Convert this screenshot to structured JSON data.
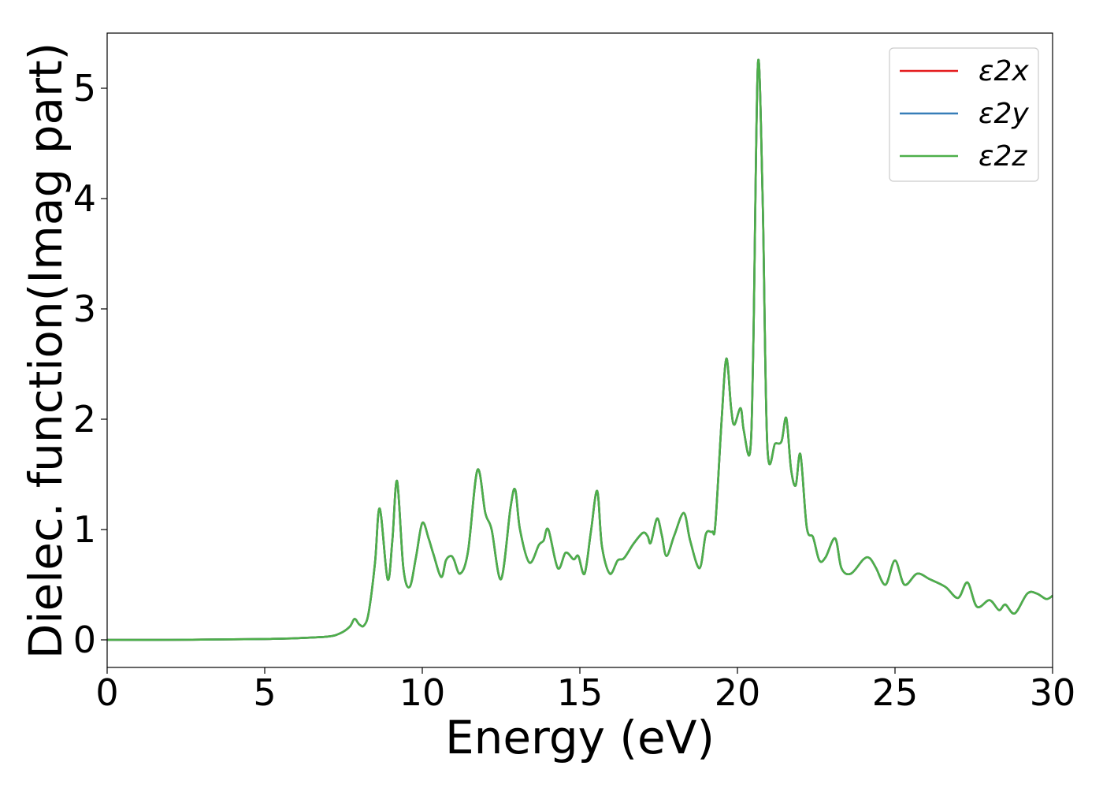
{
  "chart_data": {
    "type": "line",
    "title": "",
    "xlabel": "Energy (eV)",
    "ylabel": "Dielec. function(Imag part)",
    "xlim": [
      0,
      30
    ],
    "ylim": [
      -0.25,
      5.5
    ],
    "xticks": [
      0,
      5,
      10,
      15,
      20,
      25,
      30
    ],
    "yticks": [
      0,
      1,
      2,
      3,
      4,
      5
    ],
    "grid": false,
    "legend_position": "top-right",
    "series": [
      {
        "name": "ε2x",
        "color": "#e41a1c",
        "ref": "s0"
      },
      {
        "name": "ε2y",
        "color": "#377eb8",
        "ref": "s0"
      },
      {
        "name": "ε2z",
        "color": "#4daf4a",
        "ref": "s0"
      }
    ],
    "x": [
      0,
      2,
      4,
      5,
      6,
      7,
      7.4,
      7.7,
      7.85,
      8.0,
      8.15,
      8.3,
      8.5,
      8.65,
      8.9,
      9.05,
      9.2,
      9.4,
      9.6,
      9.8,
      10.0,
      10.2,
      10.35,
      10.6,
      10.75,
      10.9,
      11.0,
      11.2,
      11.45,
      11.75,
      12.0,
      12.2,
      12.5,
      12.8,
      12.95,
      13.1,
      13.4,
      13.7,
      13.85,
      14.0,
      14.3,
      14.55,
      14.8,
      14.95,
      15.15,
      15.35,
      15.55,
      15.7,
      15.95,
      16.2,
      16.4,
      16.7,
      17.0,
      17.15,
      17.25,
      17.45,
      17.6,
      17.75,
      18.0,
      18.3,
      18.5,
      18.8,
      19.0,
      19.2,
      19.3,
      19.5,
      19.65,
      19.8,
      19.9,
      20.1,
      20.2,
      20.4,
      20.5,
      20.65,
      20.8,
      20.95,
      21.2,
      21.4,
      21.55,
      21.7,
      21.85,
      22.0,
      22.2,
      22.4,
      22.6,
      22.8,
      23.1,
      23.3,
      23.6,
      24.0,
      24.2,
      24.4,
      24.7,
      25.0,
      25.3,
      25.7,
      26.1,
      26.6,
      27.0,
      27.3,
      27.6,
      28.0,
      28.3,
      28.5,
      28.8,
      29.2,
      29.5,
      29.8,
      30.0
    ],
    "y": [
      0.0,
      0.0,
      0.005,
      0.008,
      0.015,
      0.03,
      0.06,
      0.12,
      0.19,
      0.14,
      0.13,
      0.25,
      0.7,
      1.19,
      0.55,
      0.9,
      1.44,
      0.65,
      0.48,
      0.75,
      1.06,
      0.92,
      0.78,
      0.57,
      0.72,
      0.76,
      0.73,
      0.6,
      0.8,
      1.54,
      1.15,
      1.0,
      0.55,
      1.2,
      1.36,
      1.0,
      0.7,
      0.86,
      0.9,
      1.0,
      0.65,
      0.79,
      0.73,
      0.76,
      0.6,
      0.98,
      1.35,
      0.85,
      0.6,
      0.72,
      0.74,
      0.87,
      0.97,
      0.94,
      0.88,
      1.1,
      0.95,
      0.76,
      0.95,
      1.15,
      0.9,
      0.65,
      0.96,
      0.98,
      1.05,
      2.0,
      2.55,
      2.1,
      1.95,
      2.1,
      1.9,
      1.7,
      2.6,
      5.22,
      4.0,
      1.75,
      1.78,
      1.8,
      2.01,
      1.55,
      1.4,
      1.68,
      1.02,
      0.93,
      0.72,
      0.75,
      0.92,
      0.65,
      0.6,
      0.73,
      0.74,
      0.65,
      0.5,
      0.72,
      0.5,
      0.6,
      0.55,
      0.48,
      0.38,
      0.52,
      0.3,
      0.36,
      0.27,
      0.32,
      0.24,
      0.42,
      0.42,
      0.37,
      0.4
    ]
  }
}
